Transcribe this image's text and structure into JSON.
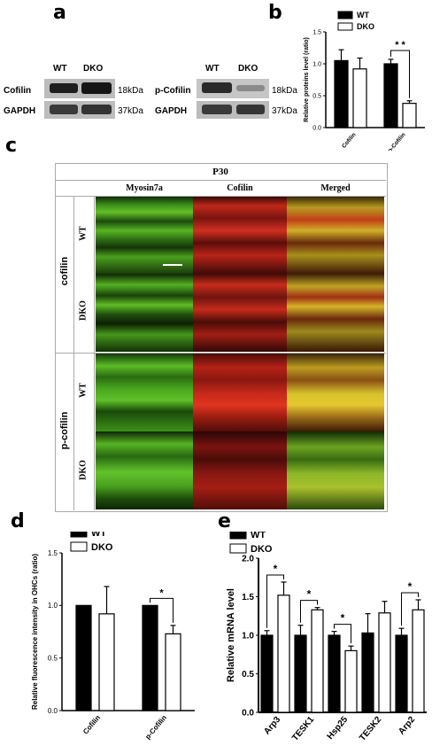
{
  "panel_letters": [
    "a",
    "b",
    "c",
    "d",
    "e"
  ],
  "panel_a": {
    "left": {
      "headers": [
        "WT",
        "DKO"
      ],
      "rows": [
        {
          "label": "Cofilin",
          "kda": "18kDa"
        },
        {
          "label": "GAPDH",
          "kda": "37kDa"
        }
      ]
    },
    "right": {
      "headers": [
        "WT",
        "DKO"
      ],
      "rows": [
        {
          "label": "p-Cofilin",
          "kda": "18kDa"
        },
        {
          "label": "GAPDH",
          "kda": "37kDa"
        }
      ]
    }
  },
  "panel_c": {
    "title": "P30",
    "columns": [
      "Myosin7a",
      "Cofilin",
      "Merged"
    ],
    "groups": [
      {
        "label": "cofilin",
        "rows": [
          "WT",
          "DKO"
        ]
      },
      {
        "label": "p-cofilin",
        "rows": [
          "WT",
          "DKO"
        ]
      }
    ]
  },
  "chart_data": [
    {
      "type": "bar",
      "panel": "b",
      "categories": [
        "Cofilin",
        "p-Cofilin"
      ],
      "series": [
        {
          "name": "WT",
          "values": [
            1.05,
            1.0
          ],
          "errors": [
            0.17,
            0.07
          ]
        },
        {
          "name": "DKO",
          "values": [
            0.92,
            0.38
          ],
          "errors": [
            0.17,
            0.04
          ]
        }
      ],
      "ylabel": "Relative proteins level (ratio)",
      "ylim": [
        0,
        1.5
      ],
      "yticks": [
        "0.0",
        "0.5",
        "1.0",
        "1.5"
      ],
      "legend_position": "top",
      "significance": [
        {
          "category": "p-Cofilin",
          "label": "* *"
        }
      ],
      "colors": {
        "WT": "#000000",
        "DKO": "#ffffff"
      }
    },
    {
      "type": "bar",
      "panel": "d",
      "categories": [
        "Cofilin",
        "p-Cofilin"
      ],
      "series": [
        {
          "name": "WT",
          "values": [
            1.0,
            1.0
          ],
          "errors": [
            0,
            0
          ]
        },
        {
          "name": "DKO",
          "values": [
            0.92,
            0.73
          ],
          "errors": [
            0.26,
            0.08
          ]
        }
      ],
      "ylabel": "Relative fluorescence intensity in OHCs (ratio)",
      "ylim": [
        0,
        1.5
      ],
      "yticks": [
        "0.0",
        "0.5",
        "1.0",
        "1.5"
      ],
      "legend_position": "top",
      "significance": [
        {
          "category": "p-Cofilin",
          "label": "*"
        }
      ],
      "colors": {
        "WT": "#000000",
        "DKO": "#ffffff"
      }
    },
    {
      "type": "bar",
      "panel": "e",
      "categories": [
        "Arp3",
        "TESK1",
        "Hsp25",
        "TESK2",
        "Arp2"
      ],
      "series": [
        {
          "name": "WT",
          "values": [
            1.0,
            1.0,
            1.0,
            1.03,
            1.0
          ],
          "errors": [
            0.06,
            0.13,
            0.05,
            0.25,
            0.09
          ]
        },
        {
          "name": "DKO",
          "values": [
            1.52,
            1.33,
            0.8,
            1.29,
            1.33
          ],
          "errors": [
            0.17,
            0.03,
            0.06,
            0.15,
            0.13
          ]
        }
      ],
      "ylabel": "Relative mRNA level",
      "ylim": [
        0,
        2.0
      ],
      "yticks": [
        "0.0",
        "0.5",
        "1.0",
        "1.5",
        "2.0"
      ],
      "legend_position": "top-left",
      "significance": [
        {
          "category": "Arp3",
          "label": "*"
        },
        {
          "category": "TESK1",
          "label": "*"
        },
        {
          "category": "Hsp25",
          "label": "*"
        },
        {
          "category": "Arp2",
          "label": "*"
        }
      ],
      "colors": {
        "WT": "#000000",
        "DKO": "#ffffff"
      }
    }
  ]
}
